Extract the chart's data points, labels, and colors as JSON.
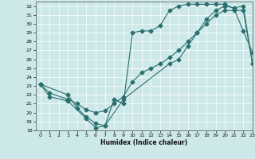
{
  "xlabel": "Humidex (Indice chaleur)",
  "ylabel": "",
  "bg_color": "#cde8e8",
  "line_color": "#2a6e6e",
  "xlim": [
    -0.5,
    23
  ],
  "ylim": [
    18,
    32.5
  ],
  "yticks": [
    18,
    19,
    20,
    21,
    22,
    23,
    24,
    25,
    26,
    27,
    28,
    29,
    30,
    31,
    32
  ],
  "xticks": [
    0,
    1,
    2,
    3,
    4,
    5,
    6,
    7,
    8,
    9,
    10,
    11,
    12,
    13,
    14,
    15,
    16,
    17,
    18,
    19,
    20,
    21,
    22,
    23
  ],
  "line1_x": [
    0,
    1,
    3,
    5,
    6,
    7,
    8,
    9,
    10,
    11,
    12,
    13,
    14,
    15,
    16,
    17,
    18,
    19,
    20,
    21,
    22,
    23
  ],
  "line1_y": [
    23.2,
    21.8,
    21.3,
    19.3,
    18.3,
    18.5,
    21.5,
    21.0,
    29.0,
    29.2,
    29.2,
    29.8,
    31.5,
    32.0,
    32.2,
    32.2,
    32.2,
    32.2,
    32.2,
    31.7,
    29.2,
    26.8
  ],
  "line2_x": [
    0,
    1,
    3,
    4,
    5,
    6,
    7,
    8,
    9,
    10,
    11,
    12,
    13,
    14,
    15,
    16,
    17,
    18,
    19,
    20,
    21,
    22,
    23
  ],
  "line2_y": [
    23.2,
    22.2,
    21.5,
    21.0,
    20.3,
    20.0,
    20.2,
    21.0,
    21.8,
    23.5,
    24.5,
    25.0,
    25.5,
    26.2,
    27.0,
    28.0,
    29.0,
    30.0,
    31.0,
    31.5,
    31.5,
    31.5,
    25.5
  ],
  "line3_x": [
    0,
    3,
    4,
    5,
    6,
    7,
    9,
    14,
    15,
    16,
    17,
    18,
    19,
    20,
    21,
    22,
    23
  ],
  "line3_y": [
    23.2,
    22.0,
    20.5,
    19.5,
    18.8,
    18.5,
    21.5,
    25.5,
    26.0,
    27.5,
    29.0,
    30.5,
    31.5,
    32.0,
    31.8,
    32.0,
    25.5
  ],
  "marker": "D",
  "markersize": 2.5
}
